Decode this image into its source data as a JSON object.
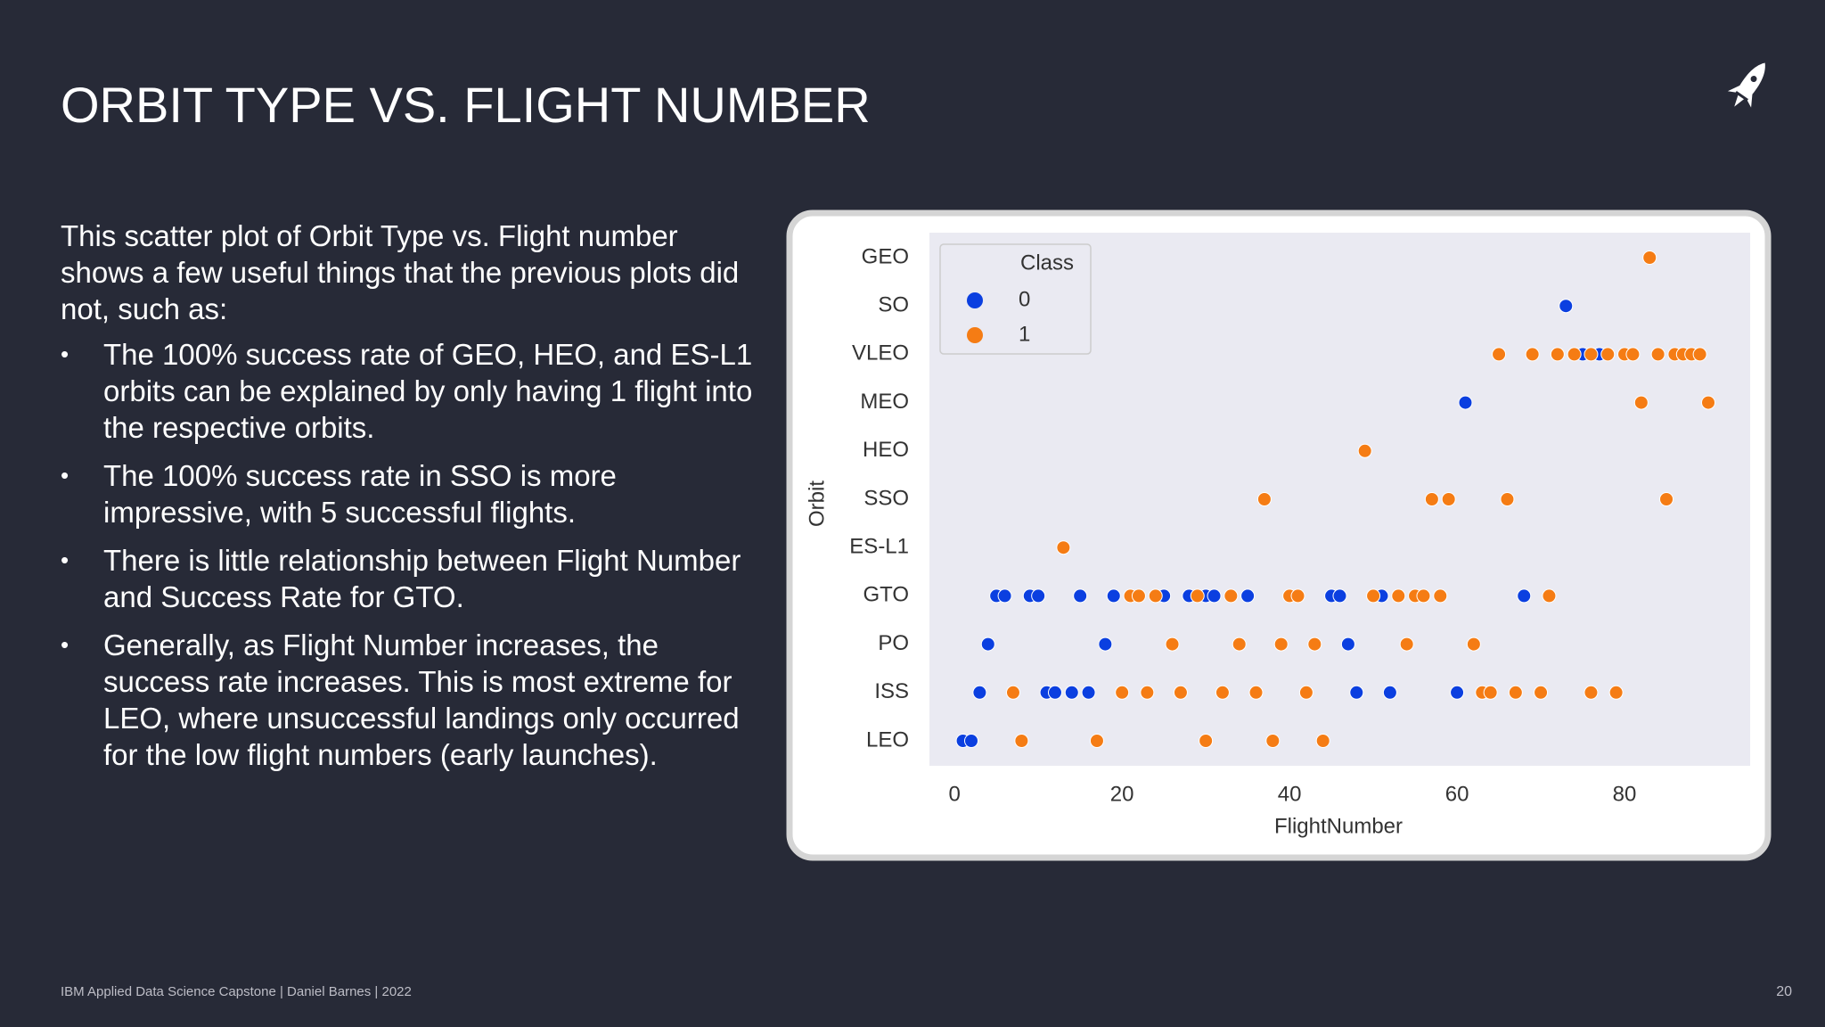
{
  "header": {
    "title": "ORBIT TYPE VS. FLIGHT NUMBER"
  },
  "body": {
    "intro": "This scatter plot of Orbit Type vs. Flight number shows a few useful things that the previous plots did not, such as:",
    "bullets": [
      "The 100% success rate of GEO, HEO, and ES-L1 orbits can be explained by only having 1 flight into the respective orbits.",
      "The 100% success rate in SSO is more impressive, with 5 successful flights.",
      "There is little relationship between Flight Number and Success Rate for GTO.",
      "Generally, as Flight Number increases, the success rate increases. This is most extreme for LEO, where unsuccessful landings only occurred for the low flight numbers (early launches)."
    ]
  },
  "footer": {
    "text": "IBM Applied Data Science Capstone  |  Daniel Barnes  |  2022",
    "page": 20
  },
  "chart_data": {
    "type": "scatter",
    "xlabel": "FlightNumber",
    "ylabel": "Orbit",
    "legend_title": "Class",
    "categories": [
      "GEO",
      "SO",
      "VLEO",
      "MEO",
      "HEO",
      "SSO",
      "ES-L1",
      "GTO",
      "PO",
      "ISS",
      "LEO"
    ],
    "xlim": [
      -3,
      95
    ],
    "xticks": [
      0,
      20,
      40,
      60,
      80
    ],
    "grid": false,
    "legend": "upper-left",
    "series": [
      {
        "name": "0",
        "color": "#0b3fe0",
        "x": [
          73,
          75,
          77,
          61,
          5,
          6,
          9,
          10,
          15,
          19,
          25,
          28,
          30,
          31,
          35,
          45,
          46,
          51,
          68,
          4,
          18,
          47,
          3,
          11,
          12,
          14,
          16,
          48,
          52,
          60,
          1,
          2
        ],
        "y": [
          "SO",
          "VLEO",
          "VLEO",
          "MEO",
          "GTO",
          "GTO",
          "GTO",
          "GTO",
          "GTO",
          "GTO",
          "GTO",
          "GTO",
          "GTO",
          "GTO",
          "GTO",
          "GTO",
          "GTO",
          "GTO",
          "GTO",
          "PO",
          "PO",
          "PO",
          "ISS",
          "ISS",
          "ISS",
          "ISS",
          "ISS",
          "ISS",
          "ISS",
          "ISS",
          "LEO",
          "LEO"
        ]
      },
      {
        "name": "1",
        "color": "#f57c14",
        "x": [
          83,
          65,
          69,
          72,
          74,
          76,
          78,
          80,
          81,
          84,
          86,
          87,
          88,
          89,
          82,
          90,
          49,
          37,
          57,
          59,
          66,
          85,
          13,
          21,
          22,
          24,
          29,
          33,
          40,
          41,
          50,
          53,
          55,
          56,
          58,
          71,
          26,
          34,
          39,
          43,
          54,
          62,
          7,
          20,
          23,
          27,
          32,
          36,
          42,
          63,
          64,
          67,
          70,
          76,
          79,
          8,
          17,
          30,
          38,
          44
        ],
        "y": [
          "GEO",
          "VLEO",
          "VLEO",
          "VLEO",
          "VLEO",
          "VLEO",
          "VLEO",
          "VLEO",
          "VLEO",
          "VLEO",
          "VLEO",
          "VLEO",
          "VLEO",
          "VLEO",
          "MEO",
          "MEO",
          "HEO",
          "SSO",
          "SSO",
          "SSO",
          "SSO",
          "SSO",
          "ES-L1",
          "GTO",
          "GTO",
          "GTO",
          "GTO",
          "GTO",
          "GTO",
          "GTO",
          "GTO",
          "GTO",
          "GTO",
          "GTO",
          "GTO",
          "GTO",
          "PO",
          "PO",
          "PO",
          "PO",
          "PO",
          "PO",
          "ISS",
          "ISS",
          "ISS",
          "ISS",
          "ISS",
          "ISS",
          "ISS",
          "ISS",
          "ISS",
          "ISS",
          "ISS",
          "ISS",
          "ISS",
          "LEO",
          "LEO",
          "LEO",
          "LEO",
          "LEO"
        ]
      }
    ]
  }
}
